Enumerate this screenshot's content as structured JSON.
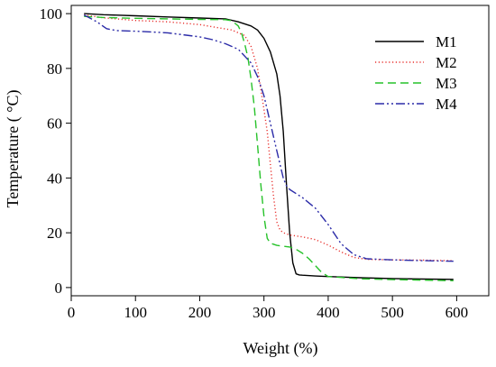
{
  "chart_data": {
    "type": "line",
    "title": "",
    "xlabel": "Weight (%)",
    "ylabel": "Temperature ( °C)",
    "xlim": [
      0,
      650
    ],
    "ylim": [
      -3,
      103
    ],
    "xticks": [
      "0",
      "100",
      "200",
      "300",
      "400",
      "500",
      "600"
    ],
    "yticks": [
      "0",
      "20",
      "40",
      "60",
      "80",
      "100"
    ],
    "grid": false,
    "legend_position": "top-right",
    "series": [
      {
        "name": "M1",
        "color": "#000000",
        "dash": "solid",
        "x": [
          20,
          50,
          100,
          150,
          200,
          240,
          260,
          280,
          290,
          300,
          310,
          320,
          325,
          330,
          335,
          340,
          345,
          350,
          355,
          360,
          380,
          400,
          450,
          500,
          550,
          595
        ],
        "y": [
          100,
          99.6,
          99.2,
          98.8,
          98.4,
          98.1,
          97.0,
          95.5,
          94,
          91,
          86,
          78,
          70,
          57,
          38,
          20,
          9,
          5,
          4.6,
          4.5,
          4.2,
          4.0,
          3.6,
          3.3,
          3.1,
          3.0
        ]
      },
      {
        "name": "M2",
        "color": "#e8312e",
        "dash": "dotted",
        "x": [
          20,
          50,
          100,
          150,
          200,
          250,
          270,
          280,
          290,
          300,
          305,
          310,
          315,
          320,
          325,
          330,
          335,
          340,
          360,
          380,
          400,
          420,
          440,
          460,
          500,
          550,
          595
        ],
        "y": [
          99.5,
          98.5,
          97.5,
          97,
          96,
          94,
          92,
          88,
          80,
          65,
          57,
          45,
          33,
          24,
          21,
          20,
          19.6,
          19.2,
          18.5,
          17.5,
          15.5,
          13,
          11,
          10.3,
          10.1,
          10.0,
          9.8
        ]
      },
      {
        "name": "M3",
        "color": "#27c22a",
        "dash": "dashed",
        "x": [
          20,
          50,
          100,
          150,
          200,
          240,
          250,
          260,
          265,
          270,
          275,
          280,
          285,
          290,
          295,
          300,
          305,
          310,
          320,
          340,
          350,
          360,
          370,
          380,
          390,
          400,
          450,
          500,
          550,
          595
        ],
        "y": [
          99,
          98.6,
          98.3,
          98.1,
          97.9,
          97.8,
          97.4,
          95.5,
          93,
          89,
          84,
          76,
          66,
          52,
          38,
          26,
          18,
          16.2,
          15.4,
          14.8,
          14,
          12.5,
          10.5,
          8,
          5.5,
          4,
          3.2,
          2.9,
          2.7,
          2.5
        ]
      },
      {
        "name": "M4",
        "color": "#2b2ba8",
        "dash": "dashdotdot",
        "x": [
          20,
          40,
          55,
          70,
          100,
          150,
          200,
          220,
          240,
          260,
          280,
          290,
          300,
          310,
          320,
          330,
          335,
          340,
          360,
          380,
          400,
          420,
          440,
          460,
          500,
          550,
          595
        ],
        "y": [
          99.5,
          97,
          94.5,
          93.8,
          93.6,
          93,
          91.5,
          90.5,
          89,
          87,
          82,
          77,
          70,
          60,
          50,
          40,
          37.2,
          35.8,
          32.8,
          29,
          23,
          16,
          12,
          10.5,
          10.1,
          9.8,
          9.6
        ]
      }
    ]
  }
}
